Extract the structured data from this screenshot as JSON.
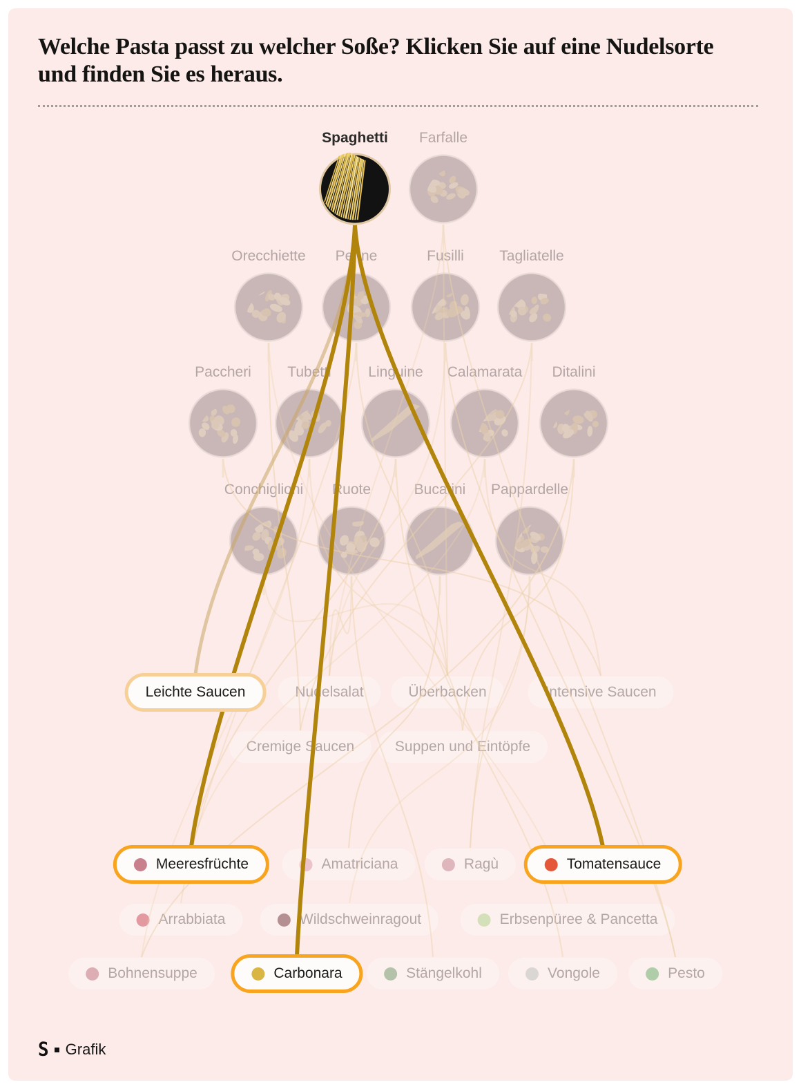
{
  "header": {
    "title": "Welche Pasta passt zu welcher Soße? Klicken Sie auf eine Nudelsorte und finden Sie es heraus."
  },
  "pasta": {
    "rows": [
      [
        {
          "name": "Spaghetti",
          "selected": true
        },
        {
          "name": "Farfalle",
          "selected": false
        }
      ],
      [
        {
          "name": "Orecchiette",
          "selected": false
        },
        {
          "name": "Penne",
          "selected": false
        },
        {
          "name": "Fusilli",
          "selected": false
        },
        {
          "name": "Tagliatelle",
          "selected": false
        }
      ],
      [
        {
          "name": "Paccheri",
          "selected": false
        },
        {
          "name": "Tubetti",
          "selected": false
        },
        {
          "name": "Linguine",
          "selected": false
        },
        {
          "name": "Calamarata",
          "selected": false
        },
        {
          "name": "Ditalini",
          "selected": false
        }
      ],
      [
        {
          "name": "Conchiglioni",
          "selected": false
        },
        {
          "name": "Ruote",
          "selected": false
        },
        {
          "name": "Bucatini",
          "selected": false
        },
        {
          "name": "Pappardelle",
          "selected": false
        }
      ]
    ]
  },
  "categories": {
    "rows": [
      [
        {
          "label": "Leichte Saucen",
          "selected": true
        },
        {
          "label": "Nudelsalat",
          "selected": false
        },
        {
          "label": "Überbacken",
          "selected": false
        },
        {
          "label": "Intensive Saucen",
          "selected": false
        }
      ],
      [
        {
          "label": "Cremige Saucen",
          "selected": false
        },
        {
          "label": "Suppen und Eintöpfe",
          "selected": false
        }
      ]
    ]
  },
  "sauces": {
    "rows": [
      [
        {
          "label": "Meeresfrüchte",
          "dot": "#c8808d",
          "selected": true
        },
        {
          "label": "Amatriciana",
          "dot": "#ecc3c8",
          "selected": false
        },
        {
          "label": "Ragù",
          "dot": "#dfb6bb",
          "selected": false
        },
        {
          "label": "Tomatensauce",
          "dot": "#e5573b",
          "selected": true
        }
      ],
      [
        {
          "label": "Arrabbiata",
          "dot": "#e29aa0",
          "selected": false
        },
        {
          "label": "Wildschweinragout",
          "dot": "#b59093",
          "selected": false
        },
        {
          "label": "Erbsenpüree & Pancetta",
          "dot": "#d3e0b9",
          "selected": false
        }
      ],
      [
        {
          "label": "Bohnensuppe",
          "dot": "#dcadb2",
          "selected": false
        },
        {
          "label": "Carbonara",
          "dot": "#d9b644",
          "selected": true
        },
        {
          "label": "Stängelkohl",
          "dot": "#b3c2a9",
          "selected": false
        },
        {
          "label": "Vongole",
          "dot": "#dad6d3",
          "selected": false
        },
        {
          "label": "Pesto",
          "dot": "#b0cda9",
          "selected": false
        }
      ]
    ]
  },
  "connections": {
    "from": "Spaghetti",
    "to": [
      {
        "target": "Leichte Saucen",
        "style": "light"
      },
      {
        "target": "Meeresfrüchte",
        "style": "bold"
      },
      {
        "target": "Tomatensauce",
        "style": "bold"
      },
      {
        "target": "Carbonara",
        "style": "bold"
      }
    ],
    "bold_color": "#b1840b",
    "light_color": "#c8a666"
  },
  "footer": {
    "brand": "S",
    "label": "Grafik"
  }
}
